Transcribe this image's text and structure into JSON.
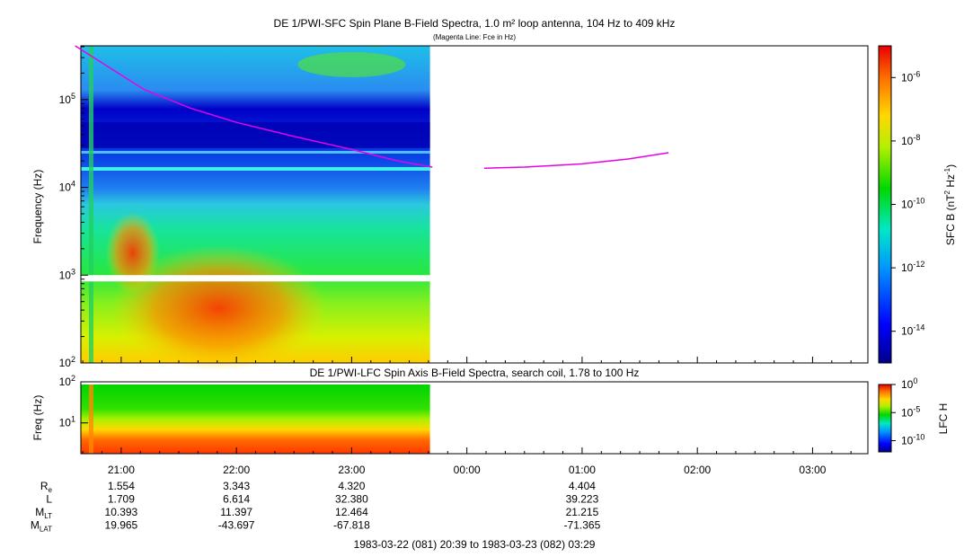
{
  "chart_data": [
    {
      "type": "heatmap",
      "title": "DE 1/PWI-SFC  Spin Plane B-Field Spectra, 1.0 m² loop antenna, 104 Hz to 409 kHz",
      "subtitle": "(Magenta Line: Fce in Hz)",
      "ylabel": "Frequency (Hz)",
      "yscale": "log",
      "ylim": [
        100,
        409000
      ],
      "yticks": [
        {
          "base": "10",
          "exp": "2"
        },
        {
          "base": "10",
          "exp": "3"
        },
        {
          "base": "10",
          "exp": "4"
        },
        {
          "base": "10",
          "exp": "5"
        }
      ],
      "colorbar": {
        "label_prefix": "SFC B (nT",
        "label_exp1": "2",
        "label_mid": " Hz",
        "label_exp2": "-1",
        "label_suffix": ")",
        "range": [
          1e-15,
          1e-05
        ],
        "ticks": [
          {
            "base": "10",
            "exp": "-6"
          },
          {
            "base": "10",
            "exp": "-8"
          },
          {
            "base": "10",
            "exp": "-10"
          },
          {
            "base": "10",
            "exp": "-12"
          },
          {
            "base": "10",
            "exp": "-14"
          }
        ]
      },
      "data_end_hours": 23.68,
      "magenta_fce_segments": [
        [
          [
            20.6,
            409000
          ],
          [
            20.9,
            230000
          ],
          [
            21.2,
            130000
          ],
          [
            21.6,
            80000
          ],
          [
            22.0,
            55000
          ],
          [
            22.5,
            38000
          ],
          [
            23.0,
            27000
          ],
          [
            23.4,
            20000
          ],
          [
            23.7,
            17000
          ]
        ],
        [
          [
            24.15,
            16500
          ],
          [
            24.5,
            17000
          ],
          [
            25.0,
            18500
          ],
          [
            25.4,
            21000
          ],
          [
            25.75,
            24800
          ]
        ]
      ]
    },
    {
      "type": "heatmap",
      "title": "DE 1/PWI-LFC  Spin Axis B-Field Spectra, search coil, 1.78 to 100 Hz",
      "ylabel": "Freq (Hz)",
      "yscale": "log",
      "ylim": [
        1.78,
        100
      ],
      "yticks": [
        {
          "base": "10",
          "exp": "1"
        },
        {
          "base": "10",
          "exp": "2"
        }
      ],
      "colorbar": {
        "label": "LFC H",
        "range": [
          1e-12,
          1
        ],
        "ticks": [
          {
            "base": "10",
            "exp": "0"
          },
          {
            "base": "10",
            "exp": "-5"
          },
          {
            "base": "10",
            "exp": "-10"
          }
        ]
      },
      "data_end_hours": 23.68
    }
  ],
  "time_axis": {
    "start_hours": 20.65,
    "end_hours": 27.48,
    "tick_labels": [
      {
        "t": 21,
        "label": "21:00"
      },
      {
        "t": 22,
        "label": "22:00"
      },
      {
        "t": 23,
        "label": "23:00"
      },
      {
        "t": 24,
        "label": "00:00"
      },
      {
        "t": 25,
        "label": "01:00"
      },
      {
        "t": 26,
        "label": "02:00"
      },
      {
        "t": 27,
        "label": "03:00"
      }
    ]
  },
  "ephemeris": {
    "rows": [
      {
        "name": "R",
        "sub": "e",
        "values": [
          "1.554",
          "3.343",
          "4.320",
          "",
          "4.404"
        ]
      },
      {
        "name": "L",
        "sub": "",
        "values": [
          "1.709",
          "6.614",
          "32.380",
          "",
          "39.223"
        ]
      },
      {
        "name": "M",
        "sub": "LT",
        "values": [
          "10.393",
          "11.397",
          "12.464",
          "",
          "21.215"
        ]
      },
      {
        "name": "M",
        "sub": "LAT",
        "values": [
          "19.965",
          "-43.697",
          "-67.818",
          "",
          "-71.365"
        ]
      }
    ],
    "date_range": "1983-03-22 (081) 20:39 to 1983-03-23 (082) 03:29"
  }
}
